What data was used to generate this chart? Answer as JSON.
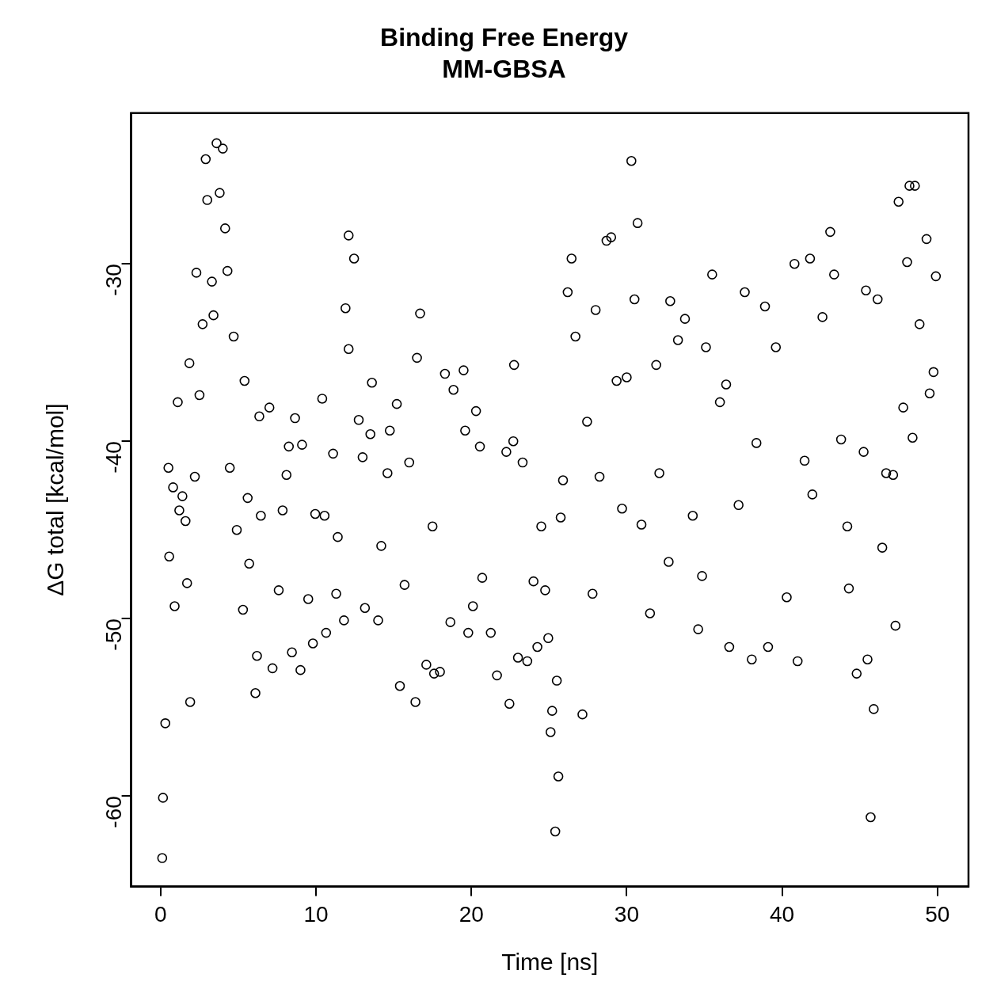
{
  "chart_data": {
    "type": "scatter",
    "title": "Binding Free Energy",
    "subtitle": "MM-GBSA",
    "xlabel": "Time [ns]",
    "ylabel": "ΔG total [kcal/mol]",
    "xlim": [
      -1.9,
      52
    ],
    "ylim": [
      -65.1,
      -21.5
    ],
    "xticks": [
      0,
      10,
      20,
      30,
      40,
      50
    ],
    "yticks": [
      -60,
      -50,
      -40,
      -30
    ],
    "grid": false,
    "legend": false,
    "marker": "circle",
    "series": [
      {
        "color": "#000000",
        "x": [
          0.1,
          0.15,
          0.3,
          0.5,
          0.55,
          0.8,
          0.9,
          1.1,
          1.2,
          1.4,
          1.6,
          1.7,
          1.85,
          1.9,
          2.2,
          2.3,
          2.5,
          2.7,
          2.9,
          3.0,
          3.3,
          3.4,
          3.6,
          3.8,
          4.0,
          4.15,
          4.3,
          4.45,
          4.7,
          4.9,
          5.3,
          5.4,
          5.6,
          5.7,
          6.1,
          6.2,
          6.35,
          6.45,
          7.0,
          7.2,
          7.6,
          7.85,
          8.1,
          8.25,
          8.45,
          8.65,
          9.0,
          9.1,
          9.5,
          9.8,
          9.95,
          10.4,
          10.55,
          10.65,
          11.1,
          11.3,
          11.4,
          11.8,
          11.9,
          12.1,
          12.1,
          12.45,
          12.75,
          13.0,
          13.15,
          13.5,
          13.6,
          14.0,
          14.2,
          14.6,
          14.75,
          15.2,
          15.4,
          15.7,
          16.0,
          16.4,
          16.5,
          16.7,
          17.1,
          17.5,
          17.6,
          17.98,
          18.3,
          18.65,
          18.85,
          19.5,
          19.6,
          19.8,
          20.1,
          20.3,
          20.55,
          20.7,
          21.25,
          21.65,
          22.25,
          22.45,
          22.7,
          22.75,
          23.0,
          23.3,
          23.6,
          24.0,
          24.25,
          24.5,
          24.75,
          24.95,
          25.1,
          25.2,
          25.4,
          25.5,
          25.6,
          25.75,
          25.9,
          26.2,
          26.45,
          26.7,
          27.15,
          27.45,
          27.8,
          28.0,
          28.25,
          28.7,
          29.0,
          29.35,
          29.7,
          30.0,
          30.3,
          30.5,
          30.7,
          30.95,
          31.5,
          31.9,
          32.1,
          32.7,
          32.8,
          33.3,
          33.75,
          34.25,
          34.6,
          34.85,
          35.1,
          35.5,
          36.0,
          36.4,
          36.6,
          37.2,
          37.6,
          38.05,
          38.35,
          38.9,
          39.1,
          39.6,
          40.3,
          40.8,
          41.0,
          41.45,
          41.8,
          41.95,
          42.6,
          43.1,
          43.35,
          43.8,
          44.2,
          44.3,
          44.8,
          45.25,
          45.5,
          45.4,
          45.7,
          45.9,
          46.15,
          46.45,
          46.7,
          47.15,
          47.3,
          47.5,
          47.8,
          48.05,
          48.2,
          48.4,
          48.55,
          48.85,
          49.3,
          49.5,
          49.75,
          49.9
        ],
        "values": [
          -63.5,
          -60.1,
          -55.9,
          -41.5,
          -46.5,
          -42.6,
          -49.3,
          -37.8,
          -43.9,
          -43.1,
          -44.5,
          -48.0,
          -35.6,
          -54.7,
          -42.0,
          -30.5,
          -37.4,
          -33.4,
          -24.1,
          -26.4,
          -31.0,
          -32.9,
          -23.2,
          -26.0,
          -23.5,
          -28.0,
          -30.4,
          -41.5,
          -34.1,
          -45.0,
          -49.5,
          -36.6,
          -43.2,
          -46.9,
          -54.2,
          -52.1,
          -38.6,
          -44.2,
          -38.1,
          -52.8,
          -48.4,
          -43.9,
          -41.9,
          -40.3,
          -51.9,
          -38.7,
          -52.9,
          -40.2,
          -48.9,
          -51.4,
          -44.1,
          -37.6,
          -44.2,
          -50.8,
          -40.7,
          -48.6,
          -45.4,
          -50.1,
          -32.5,
          -28.4,
          -34.8,
          -29.7,
          -38.8,
          -40.9,
          -49.4,
          -39.6,
          -36.7,
          -50.1,
          -45.9,
          -41.8,
          -39.4,
          -37.9,
          -53.8,
          -48.1,
          -41.2,
          -54.7,
          -35.3,
          -32.8,
          -52.6,
          -44.8,
          -53.1,
          -53.0,
          -36.2,
          -50.2,
          -37.1,
          -36.0,
          -39.4,
          -50.8,
          -49.3,
          -38.3,
          -40.3,
          -47.7,
          -50.8,
          -53.2,
          -40.6,
          -54.8,
          -40.0,
          -35.7,
          -52.2,
          -41.2,
          -52.4,
          -47.9,
          -51.6,
          -44.8,
          -48.4,
          -51.1,
          -56.4,
          -55.2,
          -62.0,
          -53.5,
          -58.9,
          -44.3,
          -42.2,
          -31.6,
          -29.7,
          -34.1,
          -55.4,
          -38.9,
          -48.6,
          -32.6,
          -42.0,
          -28.7,
          -28.5,
          -36.6,
          -43.8,
          -36.4,
          -24.2,
          -32.0,
          -27.7,
          -44.7,
          -49.7,
          -35.7,
          -41.8,
          -46.8,
          -32.1,
          -34.3,
          -33.1,
          -44.2,
          -50.6,
          -47.6,
          -34.7,
          -30.6,
          -37.8,
          -36.8,
          -51.6,
          -43.6,
          -31.6,
          -52.3,
          -40.1,
          -32.4,
          -51.6,
          -34.7,
          -48.8,
          -30.0,
          -52.4,
          -41.1,
          -29.7,
          -43.0,
          -33.0,
          -28.2,
          -30.6,
          -39.9,
          -44.8,
          -48.3,
          -53.1,
          -40.6,
          -52.3,
          -31.5,
          -61.2,
          -55.1,
          -32.0,
          -46.0,
          -41.8,
          -41.9,
          -50.4,
          -26.5,
          -38.1,
          -29.9,
          -25.6,
          -39.8,
          -25.6,
          -33.4,
          -28.6,
          -37.3,
          -36.1,
          -30.7
        ]
      }
    ]
  }
}
